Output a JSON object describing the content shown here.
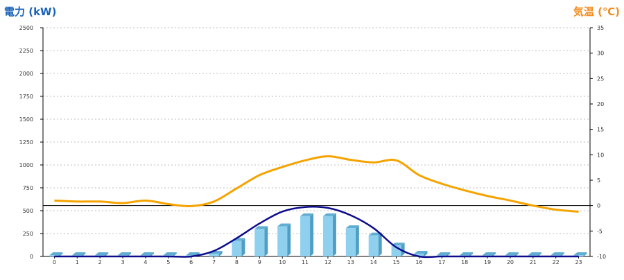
{
  "header": {
    "left_title": "電力 (kW)",
    "right_title": "気温 (℃)"
  },
  "colors": {
    "bar_face": "#8fd0ef",
    "bar_side": "#4f9fc4",
    "bar_top": "#62aed2",
    "power_curve": "#0c0c8c",
    "temperature_line": "#f5a300",
    "grid": "#bdbdbd",
    "zero_line": "#000000"
  },
  "chart_data": {
    "type": "bar",
    "categories": [
      "0",
      "1",
      "2",
      "3",
      "4",
      "5",
      "6",
      "7",
      "8",
      "9",
      "10",
      "11",
      "12",
      "13",
      "14",
      "15",
      "16",
      "17",
      "18",
      "19",
      "20",
      "21",
      "22",
      "23"
    ],
    "y_left": {
      "title": "電力 (kW)",
      "range": [
        0,
        2500
      ],
      "ticks": [
        0,
        250,
        500,
        750,
        1000,
        1250,
        1500,
        1750,
        2000,
        2250,
        2500
      ]
    },
    "y_right": {
      "title": "気温 (℃)",
      "range": [
        -10,
        35
      ],
      "ticks": [
        -10,
        -5,
        0,
        5,
        10,
        15,
        20,
        25,
        30,
        35
      ]
    },
    "grid": true,
    "bars": {
      "axis": "left",
      "values": [
        15,
        15,
        15,
        15,
        15,
        15,
        15,
        30,
        170,
        300,
        330,
        440,
        440,
        310,
        230,
        120,
        30,
        15,
        15,
        15,
        15,
        15,
        15,
        15
      ]
    },
    "power_curve": {
      "axis": "left",
      "values": [
        0,
        0,
        0,
        0,
        0,
        0,
        0,
        60,
        200,
        360,
        490,
        540,
        530,
        450,
        310,
        100,
        0,
        0,
        0,
        0,
        0,
        0,
        0,
        0
      ]
    },
    "temperature": {
      "axis": "right",
      "values": [
        1.0,
        0.8,
        0.8,
        0.5,
        1.0,
        0.3,
        -0.1,
        0.8,
        3.4,
        6.0,
        7.6,
        8.9,
        9.7,
        9.0,
        8.5,
        8.9,
        6.0,
        4.3,
        3.0,
        1.9,
        1.0,
        0.0,
        -0.8,
        -1.2
      ]
    }
  }
}
